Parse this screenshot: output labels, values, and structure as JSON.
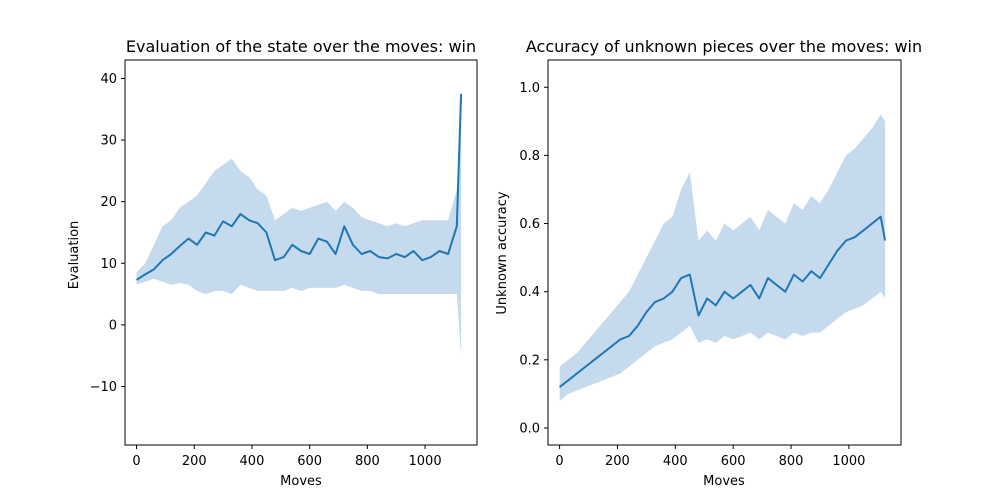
{
  "chart_data": [
    {
      "type": "line",
      "title": "Evaluation of the state over the moves: win",
      "xlabel": "Moves",
      "ylabel": "Evaluation",
      "xlim": [
        -40,
        1180
      ],
      "ylim": [
        -19.5,
        43
      ],
      "xticks": [
        0,
        200,
        400,
        600,
        800,
        1000
      ],
      "yticks": [
        -10,
        0,
        10,
        20,
        30,
        40
      ],
      "color": "#1f77b4",
      "band_color": "#a6c8e4",
      "grid": false,
      "legend": "none",
      "series": [
        {
          "x": [
            0,
            30,
            60,
            90,
            120,
            150,
            180,
            210,
            240,
            270,
            300,
            330,
            360,
            390,
            420,
            450,
            480,
            510,
            540,
            570,
            600,
            630,
            660,
            690,
            720,
            750,
            780,
            810,
            840,
            870,
            900,
            930,
            960,
            990,
            1020,
            1050,
            1080,
            1110,
            1125
          ],
          "y": [
            7.3,
            8.2,
            9.0,
            10.5,
            11.5,
            12.8,
            14.0,
            13.0,
            15.0,
            14.5,
            16.8,
            16.0,
            18.0,
            17.0,
            16.5,
            15.0,
            10.5,
            11.0,
            13.0,
            12.0,
            11.5,
            14.0,
            13.5,
            11.5,
            16.0,
            13.0,
            11.5,
            12.0,
            11.0,
            10.8,
            11.5,
            11.0,
            12.0,
            10.5,
            11.0,
            12.0,
            11.5,
            16.0,
            37.5
          ],
          "lower": [
            6.5,
            7.0,
            7.5,
            7.0,
            6.5,
            6.8,
            6.5,
            5.5,
            5.0,
            5.5,
            5.5,
            5.0,
            6.5,
            6.0,
            5.5,
            5.5,
            5.5,
            5.5,
            6.0,
            5.5,
            6.0,
            6.0,
            6.0,
            6.0,
            6.5,
            6.0,
            5.5,
            5.5,
            5.0,
            5.0,
            5.0,
            5.0,
            5.0,
            5.0,
            5.0,
            5.0,
            5.0,
            5.0,
            -5.0
          ],
          "upper": [
            8.5,
            10.0,
            13.0,
            16.0,
            17.0,
            19.0,
            20.0,
            21.0,
            23.0,
            25.0,
            26.0,
            27.0,
            25.0,
            24.0,
            22.0,
            21.0,
            17.0,
            18.0,
            19.0,
            18.5,
            19.0,
            19.5,
            20.0,
            18.5,
            20.0,
            19.0,
            17.5,
            17.0,
            16.5,
            16.0,
            16.5,
            16.0,
            16.5,
            17.0,
            17.0,
            17.0,
            17.0,
            22.0,
            38.0
          ]
        }
      ]
    },
    {
      "type": "line",
      "title": "Accuracy of unknown pieces over the moves: win",
      "xlabel": "Moves",
      "ylabel": "Unknown accuracy",
      "xlim": [
        -40,
        1180
      ],
      "ylim": [
        -0.05,
        1.08
      ],
      "xticks": [
        0,
        200,
        400,
        600,
        800,
        1000
      ],
      "yticks": [
        0.0,
        0.2,
        0.4,
        0.6,
        0.8,
        1.0
      ],
      "color": "#1f77b4",
      "band_color": "#a6c8e4",
      "grid": false,
      "legend": "none",
      "series": [
        {
          "x": [
            0,
            30,
            60,
            90,
            120,
            150,
            180,
            210,
            240,
            270,
            300,
            330,
            360,
            390,
            420,
            450,
            480,
            510,
            540,
            570,
            600,
            630,
            660,
            690,
            720,
            750,
            780,
            810,
            840,
            870,
            900,
            930,
            960,
            990,
            1020,
            1050,
            1080,
            1110,
            1125
          ],
          "y": [
            0.12,
            0.14,
            0.16,
            0.18,
            0.2,
            0.22,
            0.24,
            0.26,
            0.27,
            0.3,
            0.34,
            0.37,
            0.38,
            0.4,
            0.44,
            0.45,
            0.33,
            0.38,
            0.36,
            0.4,
            0.38,
            0.4,
            0.42,
            0.38,
            0.44,
            0.42,
            0.4,
            0.45,
            0.43,
            0.46,
            0.44,
            0.48,
            0.52,
            0.55,
            0.56,
            0.58,
            0.6,
            0.62,
            0.55
          ],
          "lower": [
            0.08,
            0.1,
            0.11,
            0.12,
            0.13,
            0.14,
            0.15,
            0.16,
            0.18,
            0.2,
            0.22,
            0.24,
            0.25,
            0.26,
            0.28,
            0.3,
            0.25,
            0.26,
            0.25,
            0.27,
            0.26,
            0.27,
            0.28,
            0.26,
            0.28,
            0.27,
            0.26,
            0.28,
            0.27,
            0.28,
            0.28,
            0.3,
            0.32,
            0.34,
            0.35,
            0.36,
            0.38,
            0.4,
            0.38
          ],
          "upper": [
            0.18,
            0.2,
            0.22,
            0.25,
            0.28,
            0.31,
            0.34,
            0.37,
            0.4,
            0.45,
            0.5,
            0.55,
            0.6,
            0.62,
            0.7,
            0.75,
            0.55,
            0.58,
            0.55,
            0.6,
            0.58,
            0.6,
            0.62,
            0.58,
            0.64,
            0.62,
            0.6,
            0.66,
            0.64,
            0.68,
            0.66,
            0.7,
            0.75,
            0.8,
            0.82,
            0.85,
            0.88,
            0.92,
            0.9
          ]
        }
      ]
    }
  ]
}
